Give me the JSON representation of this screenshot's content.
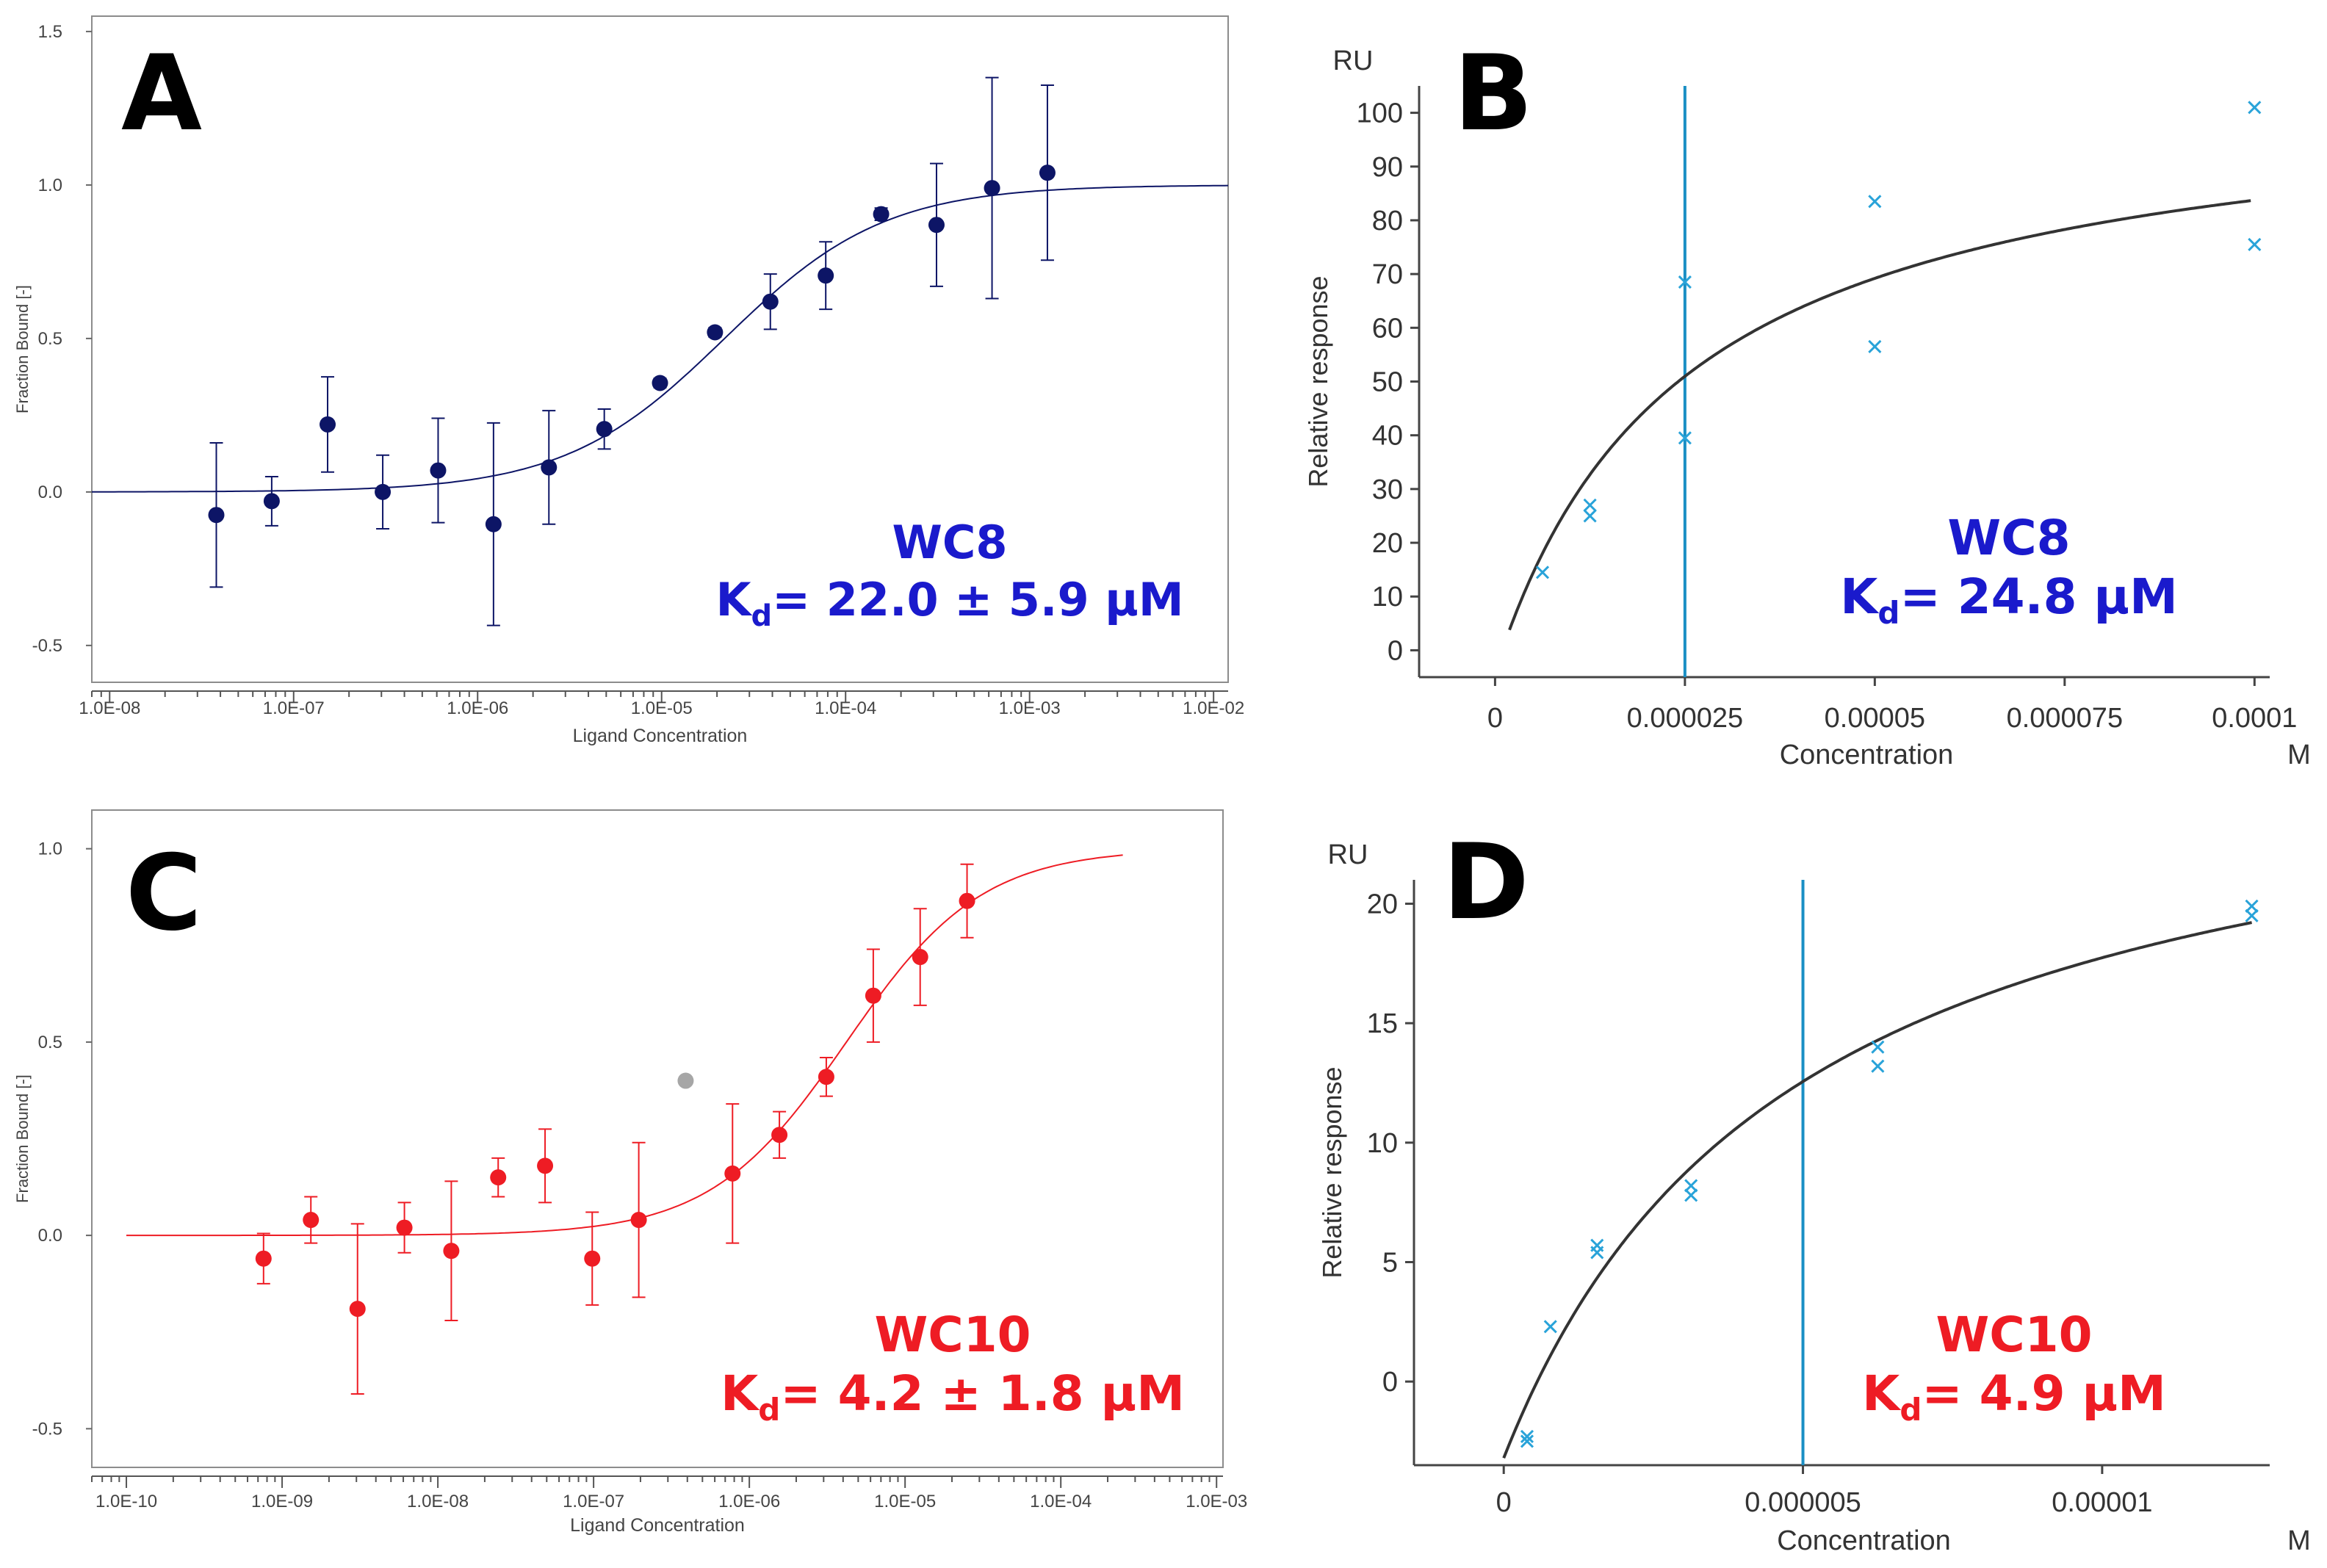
{
  "chart_data": [
    {
      "id": "A",
      "type": "scatter",
      "panel_label": "A",
      "xscale": "log",
      "xlabel": "Ligand Concentration",
      "ylabel": "Fraction Bound [-]",
      "xlim": [
        8e-09,
        0.012
      ],
      "ylim": [
        -0.62,
        1.55
      ],
      "xticks": [
        1e-08,
        1e-07,
        1e-06,
        1e-05,
        0.0001,
        0.001,
        0.01
      ],
      "xtick_labels": [
        "1.0E-08",
        "1.0E-07",
        "1.0E-06",
        "1.0E-05",
        "1.0E-04",
        "1.0E-03",
        "1.0E-02"
      ],
      "yticks": [
        -0.5,
        0.0,
        0.5,
        1.0,
        1.5
      ],
      "ytick_labels": [
        "-0.5",
        "0.0",
        "0.5",
        "1.0",
        "1.5"
      ],
      "color": "#0d1566",
      "fit": {
        "model": "hill",
        "kd": 2.2e-05,
        "bottom": 0,
        "top": 1,
        "hill": 1,
        "x_range": [
          8e-09,
          0.012
        ]
      },
      "points": [
        {
          "x": 3.8e-08,
          "y": -0.075,
          "err": 0.235
        },
        {
          "x": 7.6e-08,
          "y": -0.03,
          "err": 0.08
        },
        {
          "x": 1.53e-07,
          "y": 0.22,
          "err": 0.155
        },
        {
          "x": 3.05e-07,
          "y": 0.0,
          "err": 0.12
        },
        {
          "x": 6.1e-07,
          "y": 0.07,
          "err": 0.17
        },
        {
          "x": 1.22e-06,
          "y": -0.105,
          "err": 0.33
        },
        {
          "x": 2.44e-06,
          "y": 0.08,
          "err": 0.185
        },
        {
          "x": 4.88e-06,
          "y": 0.205,
          "err": 0.065
        },
        {
          "x": 9.8e-06,
          "y": 0.355,
          "err": 0.015
        },
        {
          "x": 1.95e-05,
          "y": 0.52,
          "err": 0.015
        },
        {
          "x": 3.9e-05,
          "y": 0.62,
          "err": 0.09
        },
        {
          "x": 7.8e-05,
          "y": 0.705,
          "err": 0.11
        },
        {
          "x": 0.000156,
          "y": 0.905,
          "err": 0.02
        },
        {
          "x": 0.000312,
          "y": 0.87,
          "err": 0.2
        },
        {
          "x": 0.000625,
          "y": 0.99,
          "err": 0.36
        },
        {
          "x": 0.00125,
          "y": 1.04,
          "err": 0.285
        }
      ],
      "annotation": {
        "name": "WC8",
        "kd_prefix": "K",
        "kd_sub": "d",
        "kd_value": "= 22.0 ± 5.9 µM",
        "color": "#1a1acc"
      }
    },
    {
      "id": "B",
      "type": "scatter",
      "panel_label": "B",
      "xscale": "linear",
      "xlabel": "Concentration",
      "x_unit": "M",
      "ylabel": "Relative response",
      "y_unit": "RU",
      "xlim": [
        -1e-05,
        0.000102
      ],
      "ylim": [
        -5,
        105
      ],
      "xticks": [
        0,
        2.5e-05,
        5e-05,
        7.5e-05,
        0.0001
      ],
      "xtick_labels": [
        "0",
        "0.000025",
        "0.00005",
        "0.000075",
        "0.0001"
      ],
      "yticks": [
        0,
        10,
        20,
        30,
        40,
        50,
        60,
        70,
        80,
        90,
        100
      ],
      "ytick_labels": [
        "0",
        "10",
        "20",
        "30",
        "40",
        "50",
        "60",
        "70",
        "80",
        "90",
        "100"
      ],
      "fit_color": "#333333",
      "marker_color": "#29a3d9",
      "vline": {
        "x": 2.5e-05,
        "color": "#1a8fc4"
      },
      "fit": {
        "model": "steady_state_affinity",
        "kd": 2.48e-05,
        "rmax": 109.5,
        "offset": -4.0,
        "x_range": [
          1.9e-06,
          9.95e-05
        ]
      },
      "points": [
        {
          "x": 6.25e-06,
          "y": 14.5
        },
        {
          "x": 1.25e-05,
          "y": 25
        },
        {
          "x": 1.25e-05,
          "y": 27
        },
        {
          "x": 2.5e-05,
          "y": 39.5
        },
        {
          "x": 2.5e-05,
          "y": 68.5
        },
        {
          "x": 5e-05,
          "y": 56.5
        },
        {
          "x": 5e-05,
          "y": 83.5
        },
        {
          "x": 0.0001,
          "y": 75.5
        },
        {
          "x": 0.0001,
          "y": 101
        }
      ],
      "annotation": {
        "name": "WC8",
        "kd_prefix": "K",
        "kd_sub": "d",
        "kd_value": "= 24.8 µM",
        "color": "#1a1acc"
      }
    },
    {
      "id": "C",
      "type": "scatter",
      "panel_label": "C",
      "xscale": "log",
      "xlabel": "Ligand Concentration",
      "ylabel": "Fraction Bound [-]",
      "xlim": [
        6e-11,
        0.0011
      ],
      "ylim": [
        -0.6,
        1.1
      ],
      "xticks": [
        1e-10,
        1e-09,
        1e-08,
        1e-07,
        1e-06,
        1e-05,
        0.0001,
        0.001
      ],
      "xtick_labels": [
        "1.0E-10",
        "1.0E-09",
        "1.0E-08",
        "1.0E-07",
        "1.0E-06",
        "1.0E-05",
        "1.0E-04",
        "1.0E-03"
      ],
      "yticks": [
        -0.5,
        0.0,
        0.5,
        1.0
      ],
      "ytick_labels": [
        "-0.5",
        "0.0",
        "0.5",
        "1.0"
      ],
      "color": "#ee1c24",
      "outlier_color": "#a6a6a6",
      "fit": {
        "model": "hill",
        "kd": 4.2e-06,
        "bottom": 0,
        "top": 1,
        "hill": 1,
        "x_range": [
          1e-10,
          0.00025
        ]
      },
      "points": [
        {
          "x": 7.6e-10,
          "y": -0.06,
          "err": 0.065
        },
        {
          "x": 1.53e-09,
          "y": 0.04,
          "err": 0.06
        },
        {
          "x": 3.05e-09,
          "y": -0.19,
          "err": 0.22
        },
        {
          "x": 6.1e-09,
          "y": 0.02,
          "err": 0.065
        },
        {
          "x": 1.22e-08,
          "y": -0.04,
          "err": 0.18
        },
        {
          "x": 2.44e-08,
          "y": 0.15,
          "err": 0.05
        },
        {
          "x": 4.88e-08,
          "y": 0.18,
          "err": 0.095
        },
        {
          "x": 9.8e-08,
          "y": -0.06,
          "err": 0.12
        },
        {
          "x": 1.95e-07,
          "y": 0.04,
          "err": 0.2
        },
        {
          "x": 7.8e-07,
          "y": 0.16,
          "err": 0.18
        },
        {
          "x": 1.56e-06,
          "y": 0.26,
          "err": 0.06
        },
        {
          "x": 3.12e-06,
          "y": 0.41,
          "err": 0.05
        },
        {
          "x": 6.25e-06,
          "y": 0.62,
          "err": 0.12
        },
        {
          "x": 1.25e-05,
          "y": 0.72,
          "err": 0.125
        },
        {
          "x": 2.5e-05,
          "y": 0.865,
          "err": 0.095
        }
      ],
      "outliers": [
        {
          "x": 3.9e-07,
          "y": 0.4
        }
      ],
      "annotation": {
        "name": "WC10",
        "kd_prefix": "K",
        "kd_sub": "d",
        "kd_value": "= 4.2 ± 1.8 µM",
        "color": "#ee1c24"
      }
    },
    {
      "id": "D",
      "type": "scatter",
      "panel_label": "D",
      "xscale": "linear",
      "xlabel": "Concentration",
      "x_unit": "M",
      "ylabel": "Relative response",
      "y_unit": "RU",
      "xlim": [
        -1.5e-06,
        1.28e-05
      ],
      "ylim": [
        -3.5,
        21
      ],
      "xticks": [
        0,
        5e-06,
        1e-05
      ],
      "xtick_labels": [
        "0",
        "0.000005",
        "0.00001"
      ],
      "yticks": [
        0,
        5,
        10,
        15,
        20
      ],
      "ytick_labels": [
        "0",
        "5",
        "10",
        "15",
        "20"
      ],
      "fit_color": "#333333",
      "marker_color": "#29a3d9",
      "vline": {
        "x": 5e-06,
        "color": "#1a8fc4"
      },
      "fit": {
        "model": "steady_state_affinity",
        "kd": 4.9e-06,
        "rmax": 31.2,
        "offset": -3.2,
        "x_range": [
          0.0,
          1.25e-05
        ]
      },
      "points": [
        {
          "x": 3.9e-07,
          "y": -2.3
        },
        {
          "x": 3.9e-07,
          "y": -2.5
        },
        {
          "x": 7.8e-07,
          "y": 2.3
        },
        {
          "x": 1.56e-06,
          "y": 5.4
        },
        {
          "x": 1.56e-06,
          "y": 5.7
        },
        {
          "x": 3.13e-06,
          "y": 7.8
        },
        {
          "x": 3.13e-06,
          "y": 8.2
        },
        {
          "x": 6.25e-06,
          "y": 13.2
        },
        {
          "x": 6.25e-06,
          "y": 14.0
        },
        {
          "x": 1.25e-05,
          "y": 19.5
        },
        {
          "x": 1.25e-05,
          "y": 19.9
        }
      ],
      "annotation": {
        "name": "WC10",
        "kd_prefix": "K",
        "kd_sub": "d",
        "kd_value": "= 4.9 µM",
        "color": "#ee1c24"
      }
    }
  ]
}
